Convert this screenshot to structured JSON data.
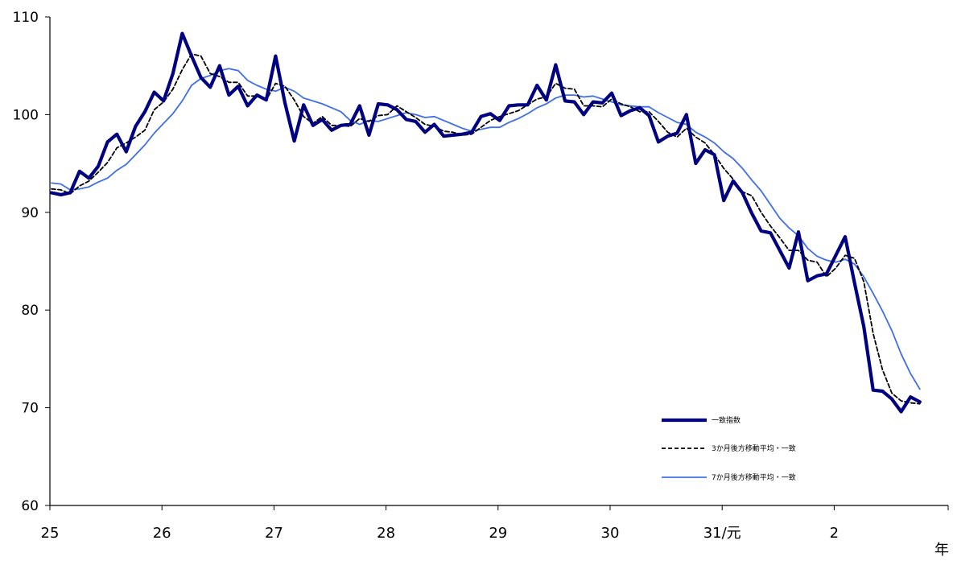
{
  "chart_data": {
    "type": "line",
    "title": "",
    "xlabel": "年",
    "ylabel": "",
    "ylim": [
      60,
      110
    ],
    "yticks": [
      "110",
      "100",
      "90",
      "80",
      "70",
      "60"
    ],
    "xticks": [
      "25",
      "26",
      "27",
      "28",
      "29",
      "30",
      "31/元",
      "2"
    ],
    "legend_position": "bottom-right",
    "grid": false,
    "series": [
      {
        "name": "一致指数",
        "color": "#000080",
        "style": "solid-thick",
        "values": [
          92.0,
          91.8,
          92.0,
          94.2,
          93.5,
          94.7,
          97.2,
          98.0,
          96.2,
          98.8,
          100.3,
          102.3,
          101.4,
          104.2,
          108.3,
          106.0,
          103.8,
          102.8,
          105.0,
          102.0,
          102.9,
          100.9,
          102.0,
          101.5,
          106.0,
          101.2,
          97.3,
          101.0,
          98.9,
          99.5,
          98.4,
          98.9,
          99.0,
          100.9,
          97.9,
          101.1,
          101.0,
          100.5,
          99.5,
          99.3,
          98.2,
          99.0,
          97.8,
          97.9,
          98.0,
          98.2,
          99.8,
          100.1,
          99.4,
          100.9,
          101.0,
          101.0,
          103.0,
          101.5,
          105.1,
          101.4,
          101.3,
          100.0,
          101.3,
          101.2,
          102.2,
          99.9,
          100.4,
          100.7,
          99.9,
          97.2,
          97.8,
          98.1,
          100.0,
          95.0,
          96.4,
          95.9,
          91.2,
          93.2,
          92.0,
          89.9,
          88.1,
          87.9,
          86.1,
          84.3,
          88.0,
          83.0,
          83.5,
          83.7,
          85.6,
          87.5,
          82.8,
          78.3,
          71.8,
          71.7,
          70.9,
          69.6,
          71.1,
          70.6
        ]
      },
      {
        "name": "3か月後方移動平均・一致",
        "color": "#000000",
        "style": "dashed",
        "values": [
          92.4,
          92.3,
          91.9,
          92.7,
          93.2,
          94.1,
          95.1,
          96.6,
          97.1,
          97.7,
          98.4,
          100.5,
          101.3,
          102.6,
          104.6,
          106.2,
          106.0,
          104.2,
          103.9,
          103.3,
          103.3,
          101.9,
          101.9,
          101.5,
          103.2,
          102.9,
          101.5,
          99.8,
          99.1,
          99.8,
          98.9,
          98.9,
          98.8,
          99.6,
          99.3,
          99.9,
          100.0,
          100.9,
          100.3,
          99.7,
          99.0,
          98.8,
          98.3,
          98.2,
          97.9,
          98.0,
          98.7,
          99.4,
          99.8,
          100.1,
          100.4,
          101.0,
          101.6,
          101.8,
          103.2,
          102.7,
          102.6,
          100.9,
          100.9,
          100.8,
          101.6,
          101.1,
          100.8,
          100.3,
          100.3,
          99.3,
          98.2,
          97.7,
          98.6,
          97.7,
          97.1,
          95.9,
          94.5,
          93.4,
          92.1,
          91.7,
          90.0,
          88.6,
          87.4,
          86.1,
          86.1,
          85.1,
          84.9,
          83.4,
          84.3,
          85.6,
          85.3,
          82.9,
          77.6,
          73.9,
          71.5,
          70.7,
          70.5,
          70.4
        ]
      },
      {
        "name": "7か月後方移動平均・一致",
        "color": "#3E6FE8",
        "style": "solid-thin",
        "values": [
          93.0,
          92.9,
          92.3,
          92.4,
          92.6,
          93.1,
          93.5,
          94.3,
          94.9,
          95.9,
          96.9,
          98.1,
          99.1,
          100.1,
          101.4,
          103.0,
          103.7,
          104.0,
          104.5,
          104.7,
          104.5,
          103.5,
          103.0,
          102.6,
          102.4,
          102.8,
          102.4,
          101.7,
          101.4,
          101.1,
          100.7,
          100.3,
          99.4,
          99.0,
          99.4,
          99.3,
          99.6,
          99.9,
          100.2,
          100.0,
          99.7,
          99.8,
          99.4,
          99.0,
          98.6,
          98.3,
          98.5,
          98.7,
          98.7,
          99.2,
          99.6,
          100.1,
          100.7,
          101.1,
          101.7,
          102.0,
          102.0,
          101.8,
          101.9,
          101.6,
          101.3,
          101.0,
          100.9,
          100.8,
          100.8,
          100.2,
          99.7,
          99.2,
          99.0,
          98.2,
          97.7,
          97.1,
          96.2,
          95.5,
          94.5,
          93.3,
          92.2,
          90.8,
          89.4,
          88.4,
          87.6,
          86.3,
          85.5,
          85.1,
          84.9,
          85.2,
          84.7,
          83.4,
          81.7,
          79.9,
          77.9,
          75.5,
          73.5,
          71.9
        ]
      }
    ]
  }
}
